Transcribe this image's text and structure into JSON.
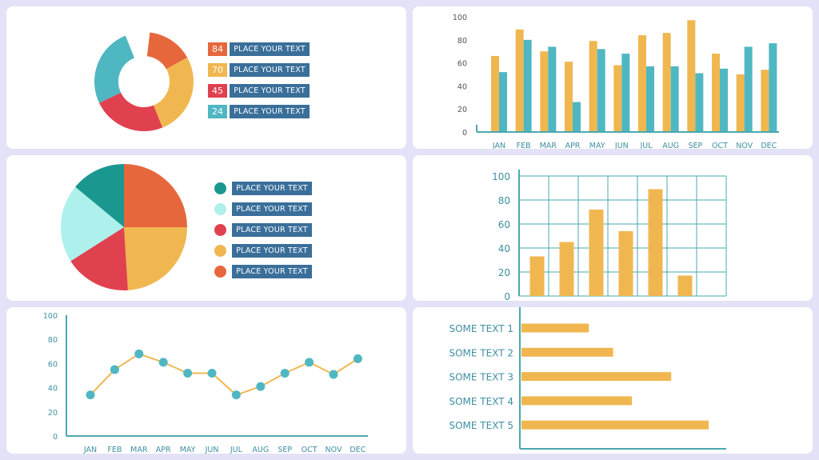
{
  "colors": {
    "teal": "#4fb7c2",
    "orange": "#e7673c",
    "yellow": "#f0b750",
    "red": "#e0414f",
    "light_teal": "#aef0ec",
    "dark_teal": "#1a9890",
    "blue": "#3a6f9a",
    "axis": "#4aa9b1"
  },
  "donut_legend": [
    {
      "num": "84",
      "label": "PLACE YOUR TEXT",
      "color": "#e7673c"
    },
    {
      "num": "70",
      "label": "PLACE YOUR TEXT",
      "color": "#f0b750"
    },
    {
      "num": "45",
      "label": "PLACE YOUR TEXT",
      "color": "#e0414f"
    },
    {
      "num": "24",
      "label": "PLACE YOUR TEXT",
      "color": "#4fb7c2"
    }
  ],
  "pie_legend": [
    {
      "label": "PLACE YOUR TEXT",
      "color": "#1a9890"
    },
    {
      "label": "PLACE YOUR TEXT",
      "color": "#aef0ec"
    },
    {
      "label": "PLACE YOUR TEXT",
      "color": "#e0414f"
    },
    {
      "label": "PLACE YOUR TEXT",
      "color": "#f0b750"
    },
    {
      "label": "PLACE YOUR TEXT",
      "color": "#e7673c"
    }
  ],
  "chart_data": [
    {
      "type": "donut",
      "segments": [
        {
          "value": 15,
          "color": "#e7673c"
        },
        {
          "value": 27,
          "color": "#f0b750"
        },
        {
          "value": 24,
          "color": "#e0414f"
        },
        {
          "value": 26,
          "color": "#4fb7c2"
        }
      ],
      "gap_fraction": 0.08
    },
    {
      "type": "bar",
      "categories": [
        "JAN",
        "FEB",
        "MAR",
        "APR",
        "MAY",
        "JUN",
        "JUL",
        "AUG",
        "SEP",
        "OCT",
        "NOV",
        "DEC"
      ],
      "series": [
        {
          "values": [
            66,
            89,
            70,
            61,
            79,
            58,
            84,
            86,
            97,
            68,
            50,
            54
          ],
          "color": "#f0b750"
        },
        {
          "values": [
            52,
            80,
            74,
            26,
            72,
            68,
            57,
            57,
            51,
            55,
            74,
            77
          ],
          "color": "#4fb7c2"
        }
      ],
      "yticks": [
        0,
        20,
        40,
        60,
        80,
        100
      ],
      "ylim": [
        0,
        100
      ]
    },
    {
      "type": "pie",
      "segments": [
        {
          "value": 25,
          "color": "#e7673c"
        },
        {
          "value": 24,
          "color": "#f0b750"
        },
        {
          "value": 17,
          "color": "#e0414f"
        },
        {
          "value": 20,
          "color": "#aef0ec"
        },
        {
          "value": 14,
          "color": "#1a9890"
        }
      ],
      "start_angle_deg": -90
    },
    {
      "type": "bar",
      "grid": true,
      "values": [
        33,
        45,
        72,
        54,
        89,
        17
      ],
      "color": "#f0b750",
      "yticks": [
        0,
        20,
        40,
        60,
        80,
        100
      ],
      "ylim": [
        0,
        100
      ]
    },
    {
      "type": "line",
      "categories": [
        "JAN",
        "FEB",
        "MAR",
        "APR",
        "MAY",
        "JUN",
        "JUL",
        "AUG",
        "SEP",
        "OCT",
        "NOV",
        "DEC"
      ],
      "values": [
        34,
        55,
        68,
        61,
        52,
        52,
        34,
        41,
        52,
        61,
        51,
        64
      ],
      "line_color": "#f0b750",
      "point_color": "#4fb7c2",
      "yticks": [
        0,
        20,
        40,
        60,
        80,
        100
      ],
      "ylim": [
        0,
        100
      ]
    },
    {
      "type": "bar",
      "orientation": "horizontal",
      "categories": [
        "SOME TEXT 1",
        "SOME TEXT 2",
        "SOME TEXT 3",
        "SOME TEXT 4",
        "SOME TEXT 5"
      ],
      "values": [
        36,
        49,
        80,
        59,
        100
      ],
      "color": "#f0b750",
      "xlim": [
        0,
        100
      ]
    }
  ]
}
